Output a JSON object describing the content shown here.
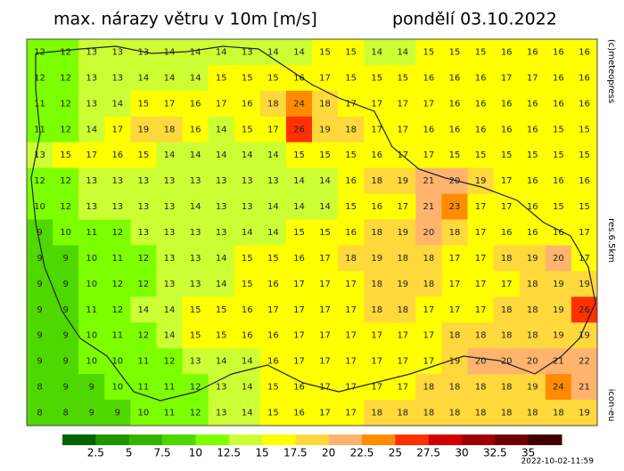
{
  "header": {
    "title": "max. nárazy větru v 10m [m/s]",
    "date": "pondělí 03.10.2022"
  },
  "side": {
    "copyright": "(c)meteopress",
    "resolution": "res.6.5km",
    "model": "icon-eu"
  },
  "timestamp": "2022-10-02-11:59",
  "colorbar": {
    "colors": [
      "#006400",
      "#1f9600",
      "#33b400",
      "#4fd800",
      "#7cff00",
      "#ccff33",
      "#ffff00",
      "#ffd83c",
      "#ffb46e",
      "#ff8c00",
      "#ff3000",
      "#d20000",
      "#a00000",
      "#700000",
      "#400000"
    ],
    "labels": [
      2.5,
      5,
      7.5,
      10,
      12.5,
      15,
      17.5,
      20,
      22.5,
      25,
      27.5,
      30,
      32.5,
      35
    ]
  },
  "grid": {
    "rows": [
      [
        12,
        12,
        13,
        13,
        13,
        14,
        14,
        14,
        13,
        14,
        14,
        15,
        15,
        14,
        14,
        15,
        15,
        15,
        16,
        16,
        16,
        16
      ],
      [
        12,
        12,
        13,
        13,
        14,
        14,
        14,
        15,
        15,
        15,
        16,
        17,
        15,
        15,
        15,
        16,
        16,
        16,
        17,
        17,
        16,
        16
      ],
      [
        11,
        12,
        13,
        14,
        15,
        17,
        16,
        17,
        16,
        18,
        24,
        18,
        17,
        17,
        17,
        17,
        16,
        16,
        16,
        16,
        16,
        16
      ],
      [
        11,
        12,
        14,
        17,
        19,
        18,
        16,
        14,
        15,
        17,
        26,
        19,
        18,
        17,
        17,
        16,
        16,
        16,
        16,
        16,
        15,
        15
      ],
      [
        13,
        15,
        17,
        16,
        15,
        14,
        14,
        14,
        14,
        14,
        15,
        15,
        15,
        16,
        17,
        17,
        15,
        15,
        15,
        15,
        15,
        15
      ],
      [
        12,
        12,
        13,
        13,
        13,
        13,
        13,
        13,
        13,
        13,
        14,
        14,
        16,
        18,
        19,
        21,
        20,
        19,
        17,
        16,
        16,
        16
      ],
      [
        10,
        12,
        13,
        13,
        13,
        13,
        14,
        13,
        13,
        14,
        14,
        14,
        15,
        16,
        17,
        21,
        23,
        17,
        17,
        16,
        15,
        15
      ],
      [
        9,
        10,
        11,
        12,
        13,
        13,
        13,
        13,
        14,
        14,
        15,
        15,
        16,
        18,
        19,
        20,
        18,
        17,
        16,
        16,
        16,
        17
      ],
      [
        9,
        9,
        10,
        11,
        12,
        13,
        13,
        14,
        15,
        15,
        16,
        17,
        18,
        19,
        18,
        18,
        17,
        17,
        18,
        19,
        20,
        17
      ],
      [
        9,
        9,
        10,
        12,
        12,
        13,
        13,
        14,
        15,
        16,
        17,
        17,
        17,
        18,
        19,
        18,
        17,
        17,
        17,
        18,
        19,
        19
      ],
      [
        9,
        9,
        11,
        12,
        14,
        14,
        15,
        15,
        16,
        17,
        17,
        17,
        17,
        18,
        18,
        17,
        17,
        17,
        18,
        18,
        19,
        26
      ],
      [
        9,
        9,
        10,
        11,
        12,
        14,
        15,
        15,
        16,
        16,
        17,
        17,
        17,
        17,
        17,
        17,
        18,
        18,
        18,
        18,
        19,
        19
      ],
      [
        9,
        9,
        10,
        10,
        11,
        12,
        13,
        14,
        14,
        16,
        17,
        17,
        17,
        17,
        17,
        17,
        19,
        20,
        20,
        20,
        21,
        22
      ],
      [
        8,
        9,
        9,
        10,
        11,
        11,
        12,
        13,
        14,
        15,
        16,
        17,
        17,
        17,
        17,
        18,
        18,
        18,
        18,
        19,
        24,
        21
      ],
      [
        8,
        8,
        9,
        9,
        10,
        11,
        12,
        13,
        14,
        15,
        16,
        17,
        17,
        18,
        18,
        18,
        18,
        18,
        18,
        18,
        18,
        19
      ]
    ]
  }
}
